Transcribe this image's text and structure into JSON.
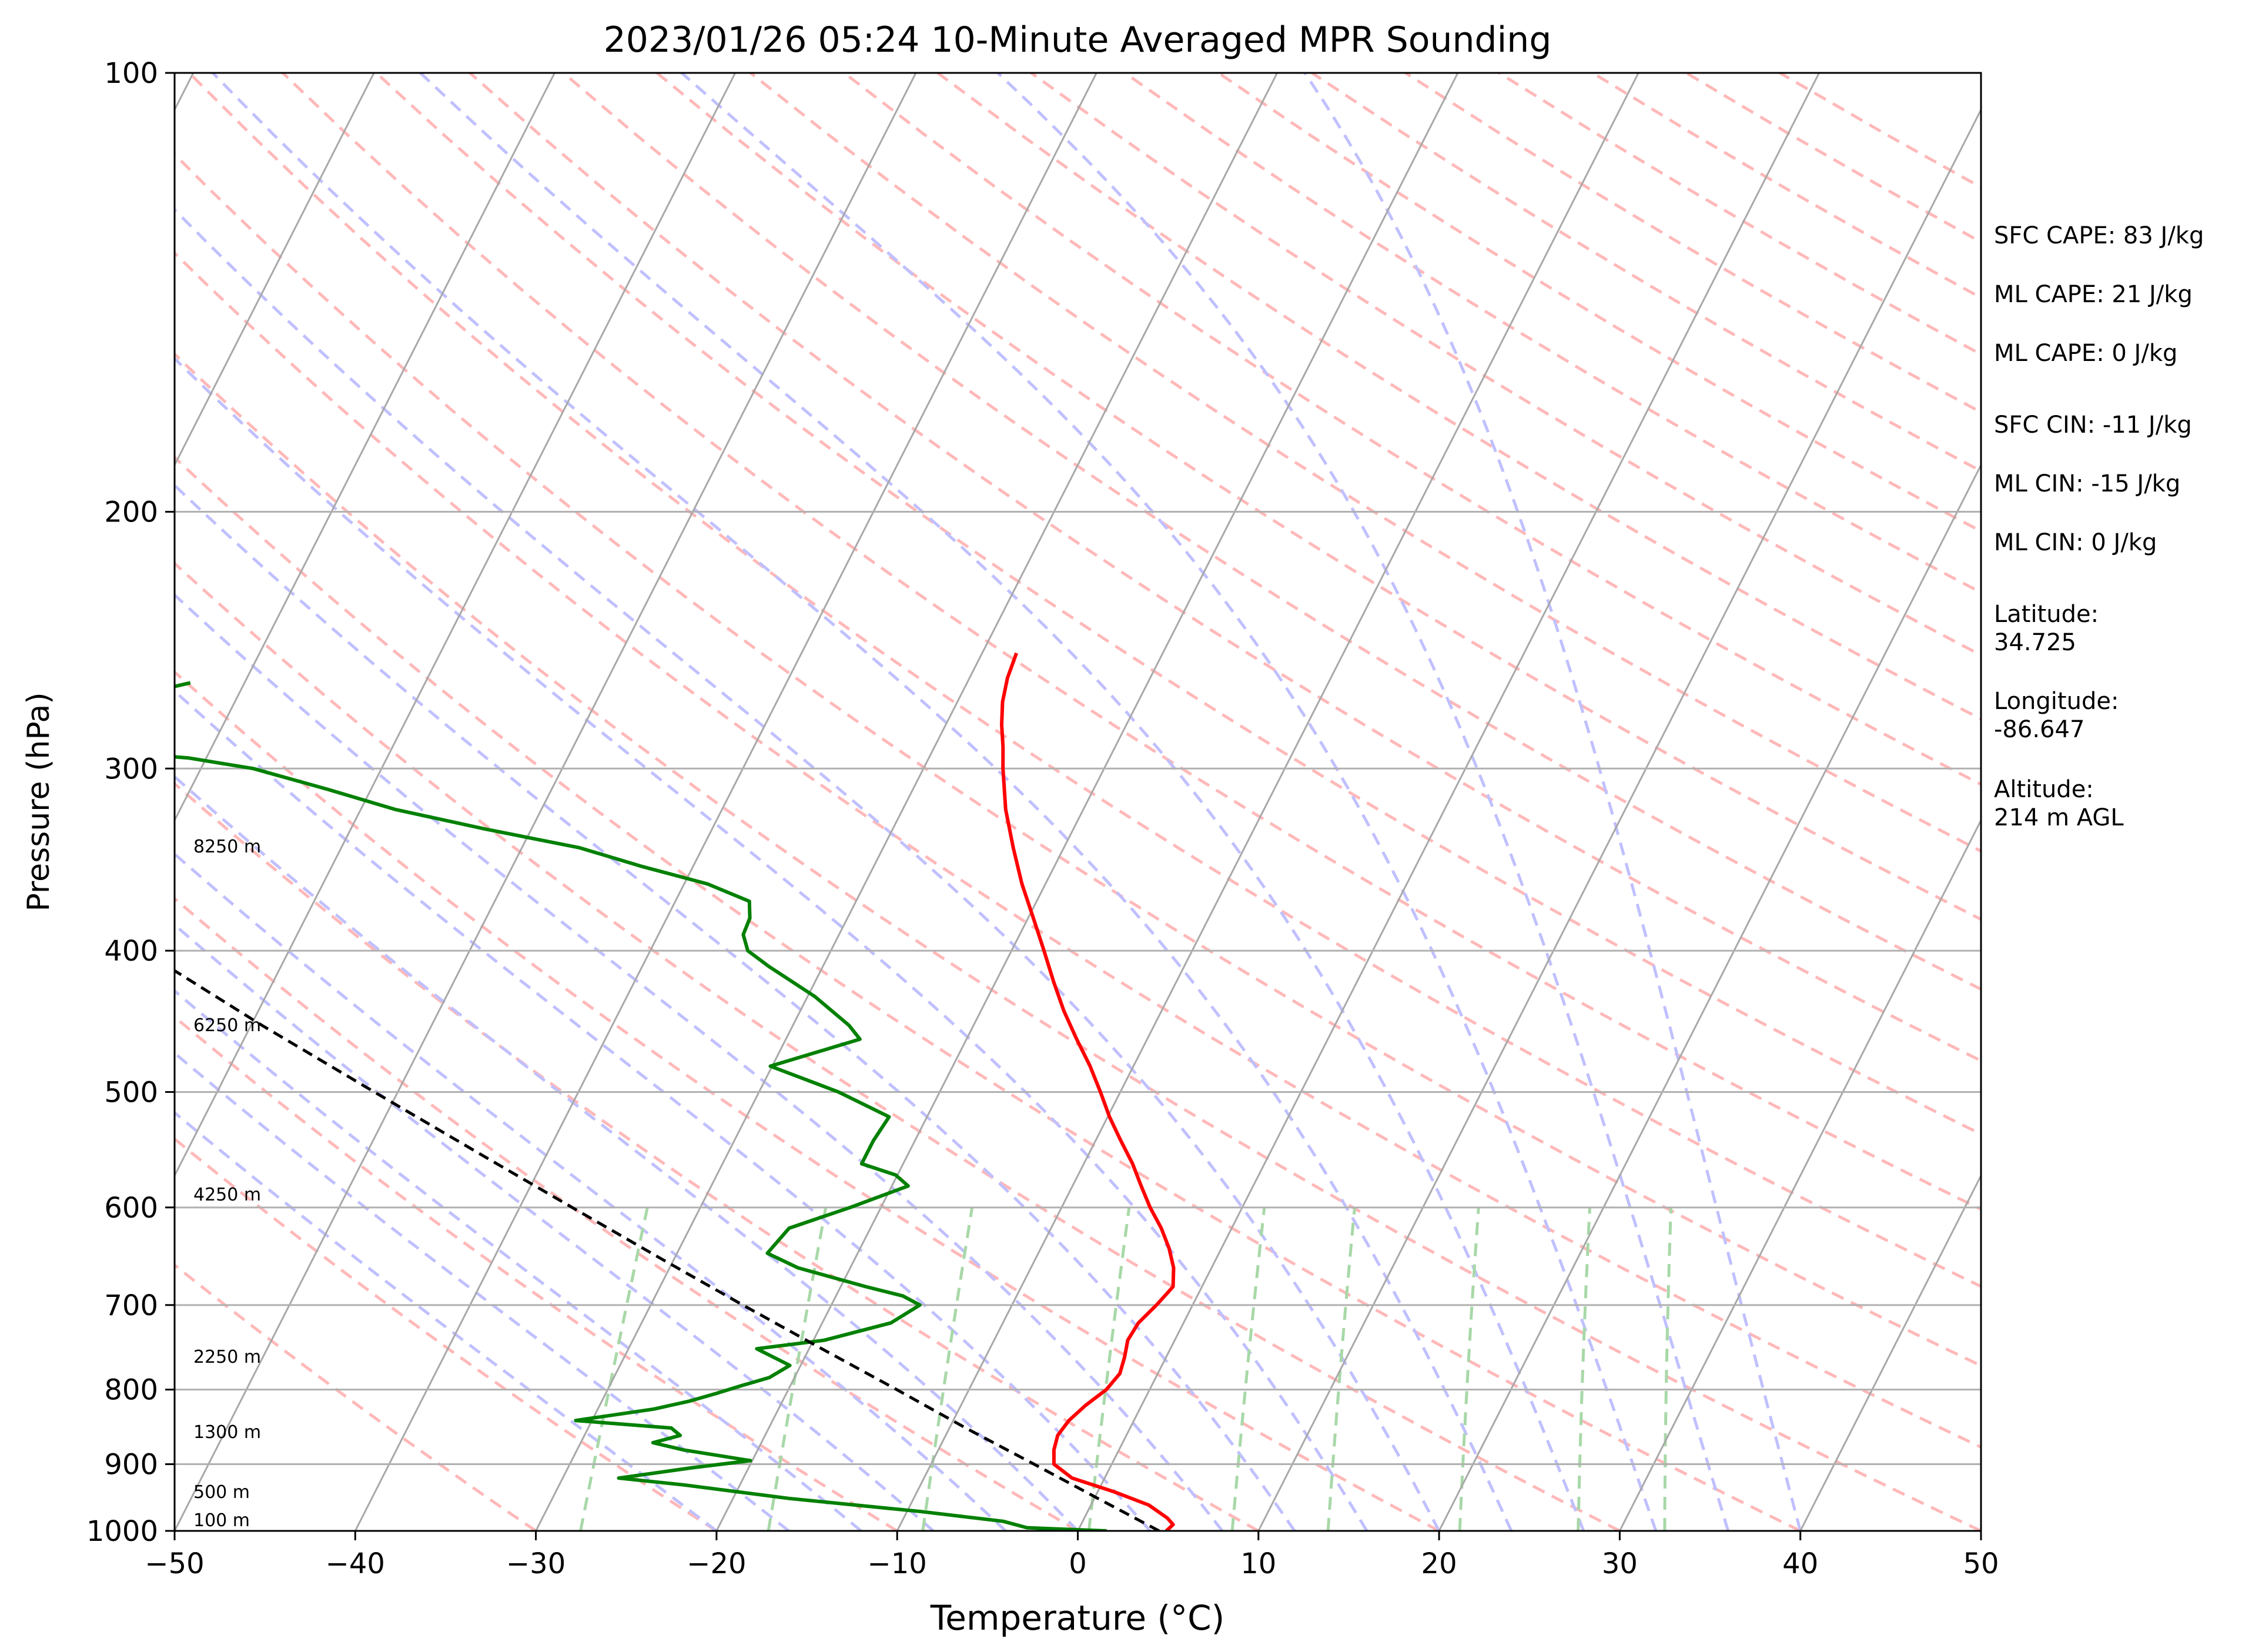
{
  "chart_data": {
    "type": "line",
    "title": "2023/01/26 05:24 10-Minute Averaged MPR Sounding",
    "xlabel": "Temperature (°C)",
    "ylabel": "Pressure (hPa)",
    "xlim": [
      -50,
      50
    ],
    "ylim": [
      1000,
      100
    ],
    "y_scale": "log",
    "skew": true,
    "grid": true,
    "x_ticks": [
      "−50",
      "−40",
      "−30",
      "−20",
      "−10",
      "0",
      "10",
      "20",
      "30",
      "40",
      "50"
    ],
    "y_ticks": [
      "100",
      "200",
      "300",
      "400",
      "500",
      "600",
      "700",
      "800",
      "900",
      "1000"
    ],
    "series": [
      {
        "color": "#ff0000",
        "points": [
          [
            1000,
            4.9
          ],
          [
            990,
            5.1
          ],
          [
            980,
            4.6
          ],
          [
            960,
            3.2
          ],
          [
            940,
            0.9
          ],
          [
            920,
            -1.8
          ],
          [
            900,
            -3.2
          ],
          [
            880,
            -3.6
          ],
          [
            860,
            -3.8
          ],
          [
            840,
            -3.6
          ],
          [
            820,
            -3.1
          ],
          [
            800,
            -2.4
          ],
          [
            780,
            -2.1
          ],
          [
            760,
            -2.3
          ],
          [
            740,
            -2.6
          ],
          [
            720,
            -2.5
          ],
          [
            700,
            -2.0
          ],
          [
            680,
            -1.6
          ],
          [
            660,
            -2.1
          ],
          [
            640,
            -2.9
          ],
          [
            620,
            -3.9
          ],
          [
            600,
            -5.1
          ],
          [
            580,
            -6.2
          ],
          [
            560,
            -7.3
          ],
          [
            540,
            -8.6
          ],
          [
            520,
            -9.9
          ],
          [
            500,
            -11.1
          ],
          [
            480,
            -12.4
          ],
          [
            460,
            -13.9
          ],
          [
            440,
            -15.4
          ],
          [
            420,
            -16.8
          ],
          [
            400,
            -18.2
          ],
          [
            380,
            -19.7
          ],
          [
            360,
            -21.3
          ],
          [
            340,
            -22.8
          ],
          [
            320,
            -24.3
          ],
          [
            300,
            -25.6
          ],
          [
            290,
            -26.2
          ],
          [
            280,
            -26.9
          ],
          [
            270,
            -27.5
          ],
          [
            260,
            -27.9
          ],
          [
            250,
            -28.1
          ]
        ]
      },
      {
        "color": "#008000",
        "points": [
          [
            1000,
            1.6
          ],
          [
            995,
            -2.9
          ],
          [
            985,
            -4.4
          ],
          [
            970,
            -9.2
          ],
          [
            950,
            -16.9
          ],
          [
            930,
            -23.1
          ],
          [
            920,
            -26.9
          ],
          [
            905,
            -23.1
          ],
          [
            895,
            -20.1
          ],
          [
            880,
            -24.1
          ],
          [
            870,
            -26.0
          ],
          [
            860,
            -24.7
          ],
          [
            850,
            -25.4
          ],
          [
            840,
            -30.9
          ],
          [
            825,
            -26.9
          ],
          [
            815,
            -25.2
          ],
          [
            805,
            -23.9
          ],
          [
            795,
            -22.7
          ],
          [
            785,
            -21.4
          ],
          [
            770,
            -20.6
          ],
          [
            750,
            -22.9
          ],
          [
            740,
            -19.4
          ],
          [
            720,
            -16.2
          ],
          [
            700,
            -15.1
          ],
          [
            690,
            -16.3
          ],
          [
            680,
            -18.6
          ],
          [
            660,
            -22.9
          ],
          [
            645,
            -25.0
          ],
          [
            620,
            -24.5
          ],
          [
            600,
            -21.7
          ],
          [
            580,
            -19.1
          ],
          [
            570,
            -20.1
          ],
          [
            560,
            -22.3
          ],
          [
            540,
            -22.3
          ],
          [
            520,
            -22.1
          ],
          [
            500,
            -25.6
          ],
          [
            480,
            -30.1
          ],
          [
            460,
            -25.9
          ],
          [
            450,
            -26.9
          ],
          [
            430,
            -29.6
          ],
          [
            410,
            -33.0
          ],
          [
            400,
            -34.6
          ],
          [
            390,
            -35.3
          ],
          [
            380,
            -35.4
          ],
          [
            370,
            -35.9
          ],
          [
            360,
            -38.7
          ],
          [
            350,
            -42.9
          ],
          [
            340,
            -46.8
          ],
          [
            330,
            -52.6
          ],
          [
            320,
            -58.1
          ],
          [
            310,
            -62.4
          ],
          [
            300,
            -67.1
          ],
          [
            295,
            -71.0
          ],
          [
            290,
            -79.0
          ],
          [
            272,
            -84.0
          ],
          [
            270,
            -77.0
          ],
          [
            262,
            -73.0
          ]
        ]
      },
      {
        "color": "#000000",
        "dashed": true,
        "points": [
          [
            1000,
            4.5
          ],
          [
            950,
            0.2
          ],
          [
            900,
            -4.3
          ],
          [
            850,
            -9.1
          ],
          [
            800,
            -14.0
          ],
          [
            750,
            -19.3
          ],
          [
            700,
            -24.9
          ],
          [
            650,
            -30.8
          ],
          [
            600,
            -37.1
          ],
          [
            550,
            -43.9
          ],
          [
            500,
            -51.3
          ],
          [
            450,
            -59.4
          ],
          [
            400,
            -68.1
          ],
          [
            350,
            -77.8
          ],
          [
            300,
            -88.6
          ],
          [
            260,
            -98.6
          ]
        ]
      }
    ],
    "height_labels": [
      "8250 m",
      "6250 m",
      "4250 m",
      "2250 m",
      "1300 m",
      "500 m",
      "100 m"
    ],
    "indices": [
      "SFC CAPE: 83 J/kg",
      "ML CAPE: 21 J/kg",
      "ML CAPE: 0 J/kg",
      "SFC CIN: -11 J/kg",
      "ML CIN: -15 J/kg",
      "ML CIN: 0 J/kg"
    ],
    "location": {
      "lat_label": "Latitude:",
      "lat_value": "34.725",
      "lon_label": "Longitude:",
      "lon_value": "-86.647",
      "alt_label": "Altitude:",
      "alt_value": "214 m AGL"
    },
    "colors": {
      "isotherm": "#a8a8a8",
      "dry_adiabat": "#ffb8b8",
      "moist_adiabat": "#c0c0ff",
      "mixing_ratio": "#a8d8a8",
      "temperature": "#ff0000",
      "dewpoint": "#008000",
      "parcel": "#000000"
    }
  }
}
